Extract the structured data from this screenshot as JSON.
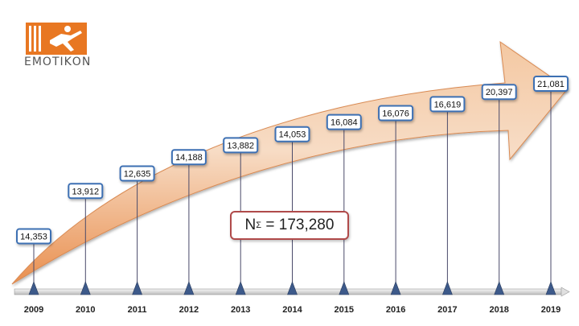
{
  "logo": {
    "text": "ΕΜΟΤΙΚΟΝ",
    "color": "#e87722"
  },
  "total": {
    "symbol": "N",
    "subscript": "Σ",
    "value": "= 173,280"
  },
  "chart_data": {
    "type": "timeline",
    "x": [
      "2009",
      "2010",
      "2011",
      "2012",
      "2013",
      "2014",
      "2015",
      "2016",
      "2017",
      "2018",
      "2019"
    ],
    "values": [
      14353,
      13912,
      12635,
      14188,
      13882,
      14053,
      16084,
      16076,
      16619,
      20397,
      21081
    ],
    "labels": [
      "14,353",
      "13,912",
      "12,635",
      "14,188",
      "13,882",
      "14,053",
      "16,084",
      "16,076",
      "16,619",
      "20,397",
      "21,081"
    ],
    "arrow_color": "#f0a96e",
    "marker_color": "#3d5a8a",
    "label_border_color": "#3d6fb3"
  }
}
